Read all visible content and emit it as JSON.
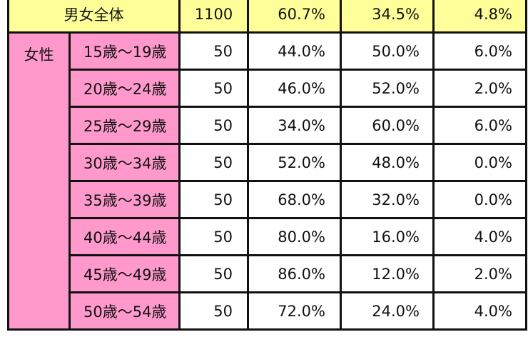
{
  "total": {
    "label": "男女全体",
    "n": "1100",
    "p1": "60.7%",
    "p2": "34.5%",
    "p3": "4.8%"
  },
  "female": {
    "label": "女性",
    "rows": [
      {
        "age": "15歳〜19歳",
        "n": "50",
        "p1": "44.0%",
        "p2": "50.0%",
        "p3": "6.0%"
      },
      {
        "age": "20歳〜24歳",
        "n": "50",
        "p1": "46.0%",
        "p2": "52.0%",
        "p3": "2.0%"
      },
      {
        "age": "25歳〜29歳",
        "n": "50",
        "p1": "34.0%",
        "p2": "60.0%",
        "p3": "6.0%"
      },
      {
        "age": "30歳〜34歳",
        "n": "50",
        "p1": "52.0%",
        "p2": "48.0%",
        "p3": "0.0%"
      },
      {
        "age": "35歳〜39歳",
        "n": "50",
        "p1": "68.0%",
        "p2": "32.0%",
        "p3": "0.0%"
      },
      {
        "age": "40歳〜44歳",
        "n": "50",
        "p1": "80.0%",
        "p2": "16.0%",
        "p3": "4.0%"
      },
      {
        "age": "45歳〜49歳",
        "n": "50",
        "p1": "86.0%",
        "p2": "12.0%",
        "p3": "2.0%"
      },
      {
        "age": "50歳〜54歳",
        "n": "50",
        "p1": "72.0%",
        "p2": "24.0%",
        "p3": "4.0%"
      }
    ]
  },
  "colors": {
    "total_row": "#ffff99",
    "female_header": "#ff99cc",
    "border": "#111111"
  }
}
